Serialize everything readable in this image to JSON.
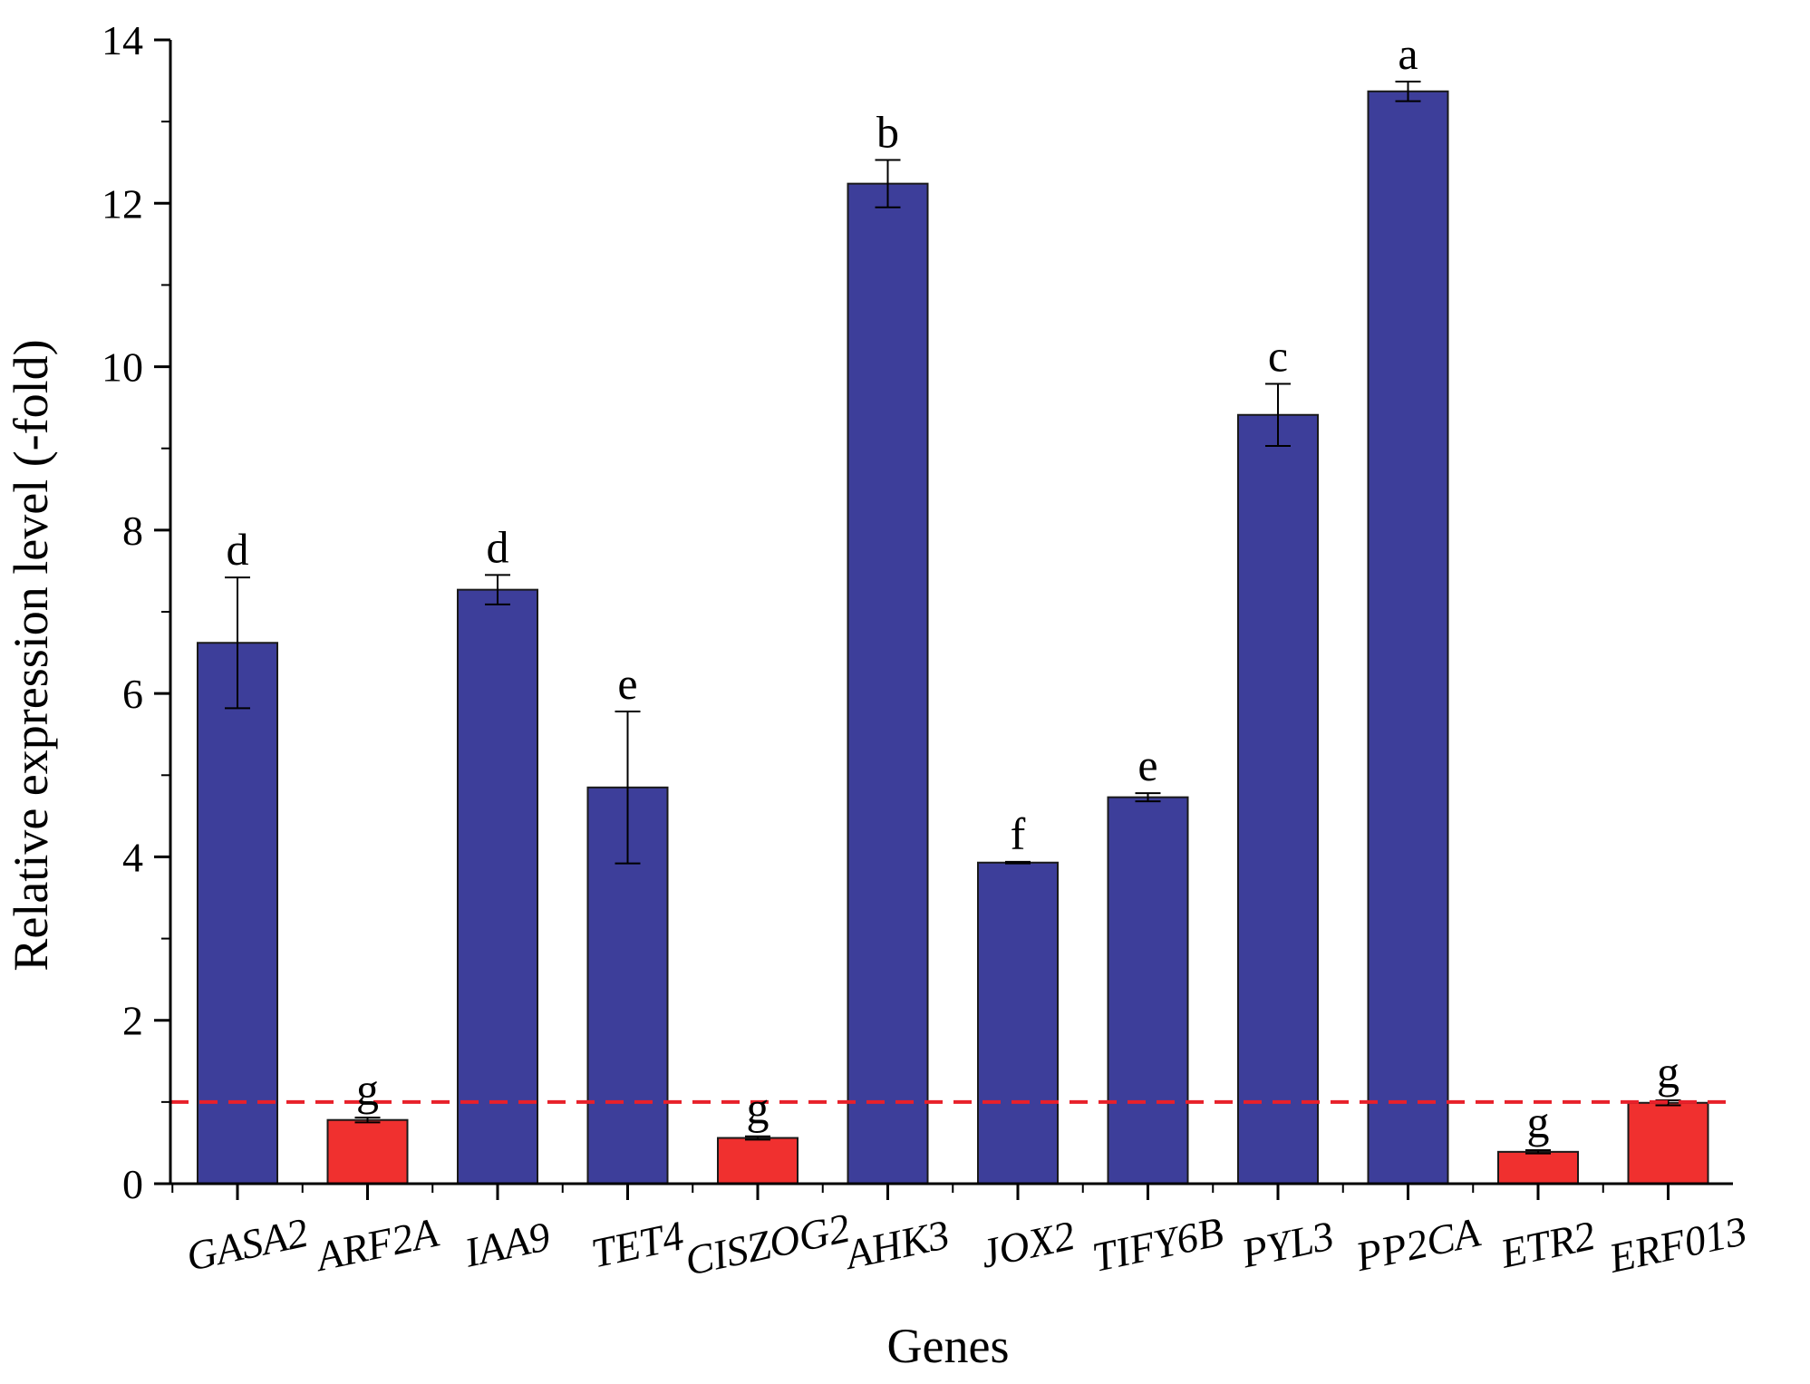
{
  "chart_data": {
    "type": "bar",
    "title": "",
    "xlabel": "Genes",
    "ylabel": "Relative expression level (-fold)",
    "ylim": [
      0,
      14
    ],
    "yticks": [
      0,
      2,
      4,
      6,
      8,
      10,
      12,
      14
    ],
    "grid": false,
    "legend": "none",
    "categories": [
      "GASA2",
      "ARF2A",
      "IAA9",
      "TET4",
      "CISZOG2",
      "AHK3",
      "JOX2",
      "TIFY6B",
      "PYL3",
      "PP2CA",
      "ETR2",
      "ERF013"
    ],
    "values": [
      6.62,
      0.78,
      7.27,
      4.85,
      0.56,
      12.24,
      3.93,
      4.73,
      9.41,
      13.37,
      0.39,
      0.99
    ],
    "errors": [
      0.8,
      0.03,
      0.18,
      0.93,
      0.02,
      0.29,
      0.01,
      0.05,
      0.38,
      0.12,
      0.02,
      0.03
    ],
    "significance": [
      "d",
      "g",
      "d",
      "e",
      "g",
      "b",
      "f",
      "e",
      "c",
      "a",
      "g",
      "g"
    ],
    "bar_colors": [
      "#3d3e9a",
      "#f0302f",
      "#3d3e9a",
      "#3d3e9a",
      "#f0302f",
      "#3d3e9a",
      "#3d3e9a",
      "#3d3e9a",
      "#3d3e9a",
      "#3d3e9a",
      "#f0302f",
      "#f0302f"
    ],
    "reference_line": {
      "y": 1,
      "color": "#e8202a",
      "style": "dashed"
    },
    "colors": {
      "up": "#3d3e9a",
      "down": "#f0302f",
      "axis": "#000000"
    }
  }
}
